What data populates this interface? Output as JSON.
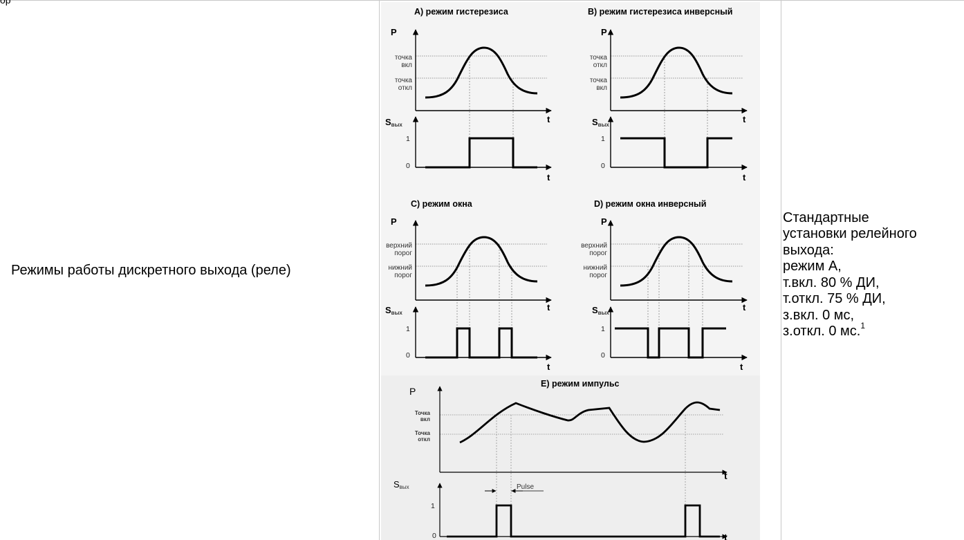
{
  "page_top_fragment": "ор",
  "left_cell": {
    "text": "Режимы работы дискретного выхода (реле)"
  },
  "right_cell": {
    "lines": [
      "Стандартные",
      "установки релейного",
      "выхода:",
      "режим А,",
      "т.вкл. 80 % ДИ,",
      "т.откл. 75 % ДИ,",
      "з.вкл. 0 мс,",
      "з.откл. 0 мс."
    ],
    "footnote_marker": "1"
  },
  "diagram": {
    "axis_p": "P",
    "axis_t": "t",
    "axis_s_main": "S",
    "axis_s_sub": "вых",
    "level_1": "1",
    "level_0": "0",
    "panel_a": {
      "title": "A) режим гистерезиса",
      "upper_1": "точка",
      "upper_2": "вкл",
      "lower_1": "точка",
      "lower_2": "откл"
    },
    "panel_b": {
      "title": "B) режим гистерезиса инверсный",
      "upper_1": "точка",
      "upper_2": "откл",
      "lower_1": "точка",
      "lower_2": "вкл"
    },
    "panel_c": {
      "title": "C) режим окна",
      "upper_1": "верхний",
      "upper_2": "порог",
      "lower_1": "нижний",
      "lower_2": "порог"
    },
    "panel_d": {
      "title": "D) режим окна инверсный",
      "upper_1": "верхний",
      "upper_2": "порог",
      "lower_1": "нижний",
      "lower_2": "порог"
    },
    "panel_e": {
      "title": "E) режим импульс",
      "upper_1": "Точка",
      "upper_2": "вкл",
      "lower_1": "Точка",
      "lower_2": "откл",
      "pulse_label": "Pulse"
    }
  }
}
